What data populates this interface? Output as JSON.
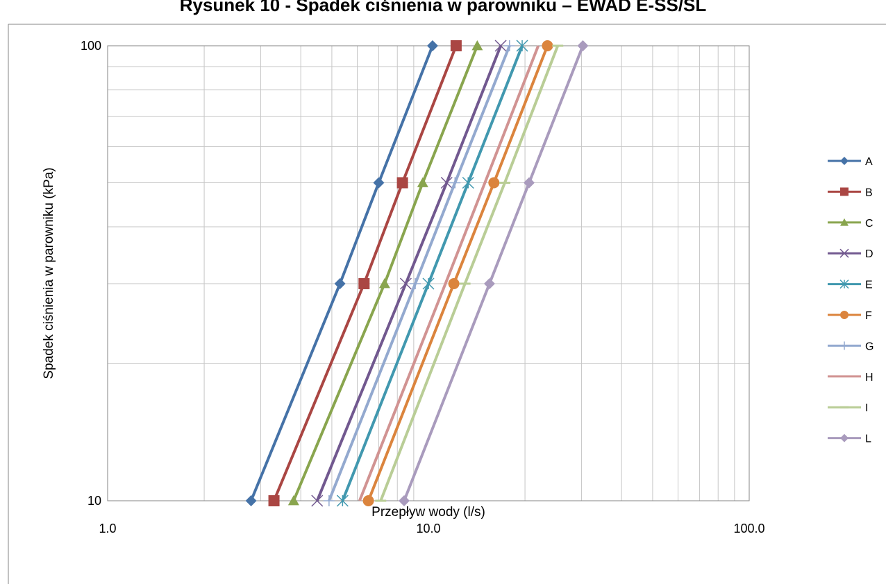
{
  "chart_data": {
    "type": "line",
    "title": "Rysunek 10 - Spadek ciśnienia w parowniku – EWAD E-SS/SL",
    "xlabel": "Przepływ wody (l/s)",
    "ylabel": "Spadek ciśnienia w parowniku (kPa)",
    "x_scale": "log",
    "y_scale": "log",
    "xlim": [
      1.0,
      100.0
    ],
    "ylim": [
      10,
      100
    ],
    "x_ticks": [
      "1.0",
      "10.0",
      "100.0"
    ],
    "y_ticks": [
      "10",
      "100"
    ],
    "grid": true,
    "legend_position": "right",
    "series": [
      {
        "name": "A",
        "color": "#4572a7",
        "marker": "diamond",
        "x": [
          2.8,
          5.3,
          7.0,
          10.3
        ],
        "y": [
          10,
          30,
          50,
          100
        ]
      },
      {
        "name": "B",
        "color": "#aa4643",
        "marker": "square",
        "x": [
          3.3,
          6.3,
          8.3,
          12.2
        ],
        "y": [
          10,
          30,
          50,
          100
        ]
      },
      {
        "name": "C",
        "color": "#89a54e",
        "marker": "triangle",
        "x": [
          3.8,
          7.3,
          9.6,
          14.2
        ],
        "y": [
          10,
          30,
          50,
          100
        ]
      },
      {
        "name": "D",
        "color": "#71588f",
        "marker": "x",
        "x": [
          4.5,
          8.5,
          11.4,
          16.8
        ],
        "y": [
          10,
          30,
          50,
          100
        ]
      },
      {
        "name": "E",
        "color": "#4198af",
        "marker": "star",
        "x": [
          5.4,
          10.0,
          13.3,
          19.6
        ],
        "y": [
          10,
          30,
          50,
          100
        ]
      },
      {
        "name": "F",
        "color": "#db843d",
        "marker": "circle",
        "x": [
          6.5,
          12.0,
          16.0,
          23.5
        ],
        "y": [
          10,
          30,
          50,
          100
        ]
      },
      {
        "name": "G",
        "color": "#93a9cf",
        "marker": "plus",
        "x": [
          4.9,
          9.1,
          12.1,
          17.9
        ],
        "y": [
          10,
          30,
          50,
          100
        ]
      },
      {
        "name": "H",
        "color": "#d19392",
        "marker": "none",
        "x": [
          6.1,
          11.3,
          15.0,
          22.0
        ],
        "y": [
          10,
          30,
          50,
          100
        ]
      },
      {
        "name": "I",
        "color": "#b9cd96",
        "marker": "dash",
        "x": [
          7.1,
          13.0,
          17.3,
          25.3
        ],
        "y": [
          10,
          30,
          50,
          100
        ]
      },
      {
        "name": "L",
        "color": "#a99bbd",
        "marker": "diamond",
        "x": [
          8.4,
          15.5,
          20.6,
          30.3
        ],
        "y": [
          10,
          30,
          50,
          100
        ]
      }
    ]
  }
}
